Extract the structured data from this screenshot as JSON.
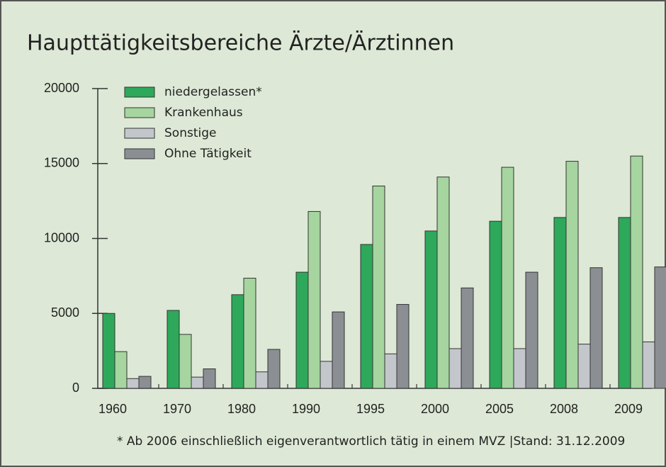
{
  "chart_data": {
    "type": "bar",
    "title": "Haupttätigkeitsbereiche Ärzte/Ärztinnen",
    "categories": [
      "1960",
      "1970",
      "1980",
      "1990",
      "1995",
      "2000",
      "2005",
      "2008",
      "2009"
    ],
    "series": [
      {
        "name": "niedergelassen*",
        "color": "#2ea85a",
        "values": [
          5000,
          5200,
          6250,
          7750,
          9600,
          10500,
          11150,
          11400,
          11400
        ]
      },
      {
        "name": "Krankenhaus",
        "color": "#a6d5a0",
        "values": [
          2450,
          3600,
          7350,
          11800,
          13500,
          14100,
          14750,
          15150,
          15500
        ]
      },
      {
        "name": "Sonstige",
        "color": "#c3c7cb",
        "values": [
          650,
          750,
          1100,
          1800,
          2300,
          2650,
          2650,
          2950,
          3100
        ]
      },
      {
        "name": "Ohne Tätigkeit",
        "color": "#8b8f93",
        "values": [
          800,
          1300,
          2600,
          5100,
          5600,
          6700,
          7750,
          8050,
          8100
        ]
      }
    ],
    "ylim": [
      0,
      20000
    ],
    "yticks": [
      0,
      5000,
      10000,
      15000,
      20000
    ],
    "legend": "top-left",
    "footnote": "* Ab 2006 einschließlich eigenverantwortlich tätig in einem MVZ |Stand: 31.12.2009"
  }
}
